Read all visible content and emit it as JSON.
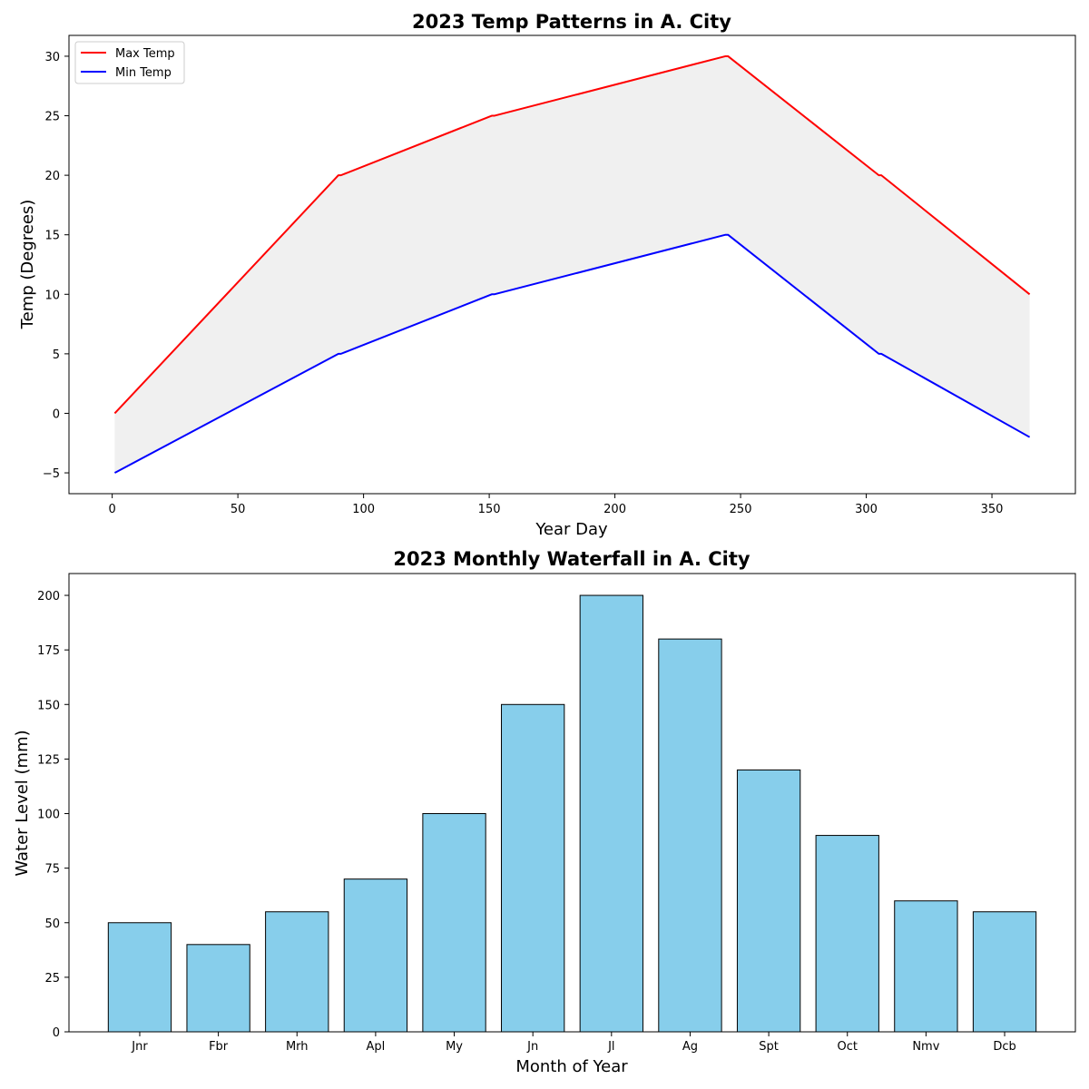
{
  "chart_data": [
    {
      "type": "line",
      "title": "2023 Temp Patterns in A. City",
      "xlabel": "Year Day",
      "ylabel": "Temp (Degrees)",
      "xlim": [
        -17.2,
        383.2
      ],
      "ylim": [
        -6.75,
        31.75
      ],
      "xticks": [
        0,
        50,
        100,
        150,
        200,
        250,
        300,
        350
      ],
      "yticks": [
        -5,
        0,
        5,
        10,
        15,
        20,
        25,
        30
      ],
      "fill_between": {
        "color": "#f0f0f0"
      },
      "legend": {
        "position": "upper-left"
      },
      "series": [
        {
          "name": "Max Temp",
          "color": "#ff0000",
          "x": [
            1,
            90,
            91,
            151,
            152,
            244,
            245,
            305,
            306,
            365
          ],
          "y": [
            0,
            20,
            20,
            25,
            25,
            30,
            30,
            20,
            20,
            10
          ]
        },
        {
          "name": "Min Temp",
          "color": "#0000ff",
          "x": [
            1,
            90,
            91,
            151,
            152,
            244,
            245,
            305,
            306,
            365
          ],
          "y": [
            -5,
            5,
            5,
            10,
            10,
            15,
            15,
            5,
            5,
            -2
          ]
        }
      ],
      "grid": false
    },
    {
      "type": "bar",
      "title": "2023 Monthly Waterfall in A. City",
      "xlabel": "Month of Year",
      "ylabel": "Water Level (mm)",
      "categories": [
        "Jnr",
        "Fbr",
        "Mrh",
        "Apl",
        "My",
        "Jn",
        "Jl",
        "Ag",
        "Spt",
        "Oct",
        "Nmv",
        "Dcb"
      ],
      "values": [
        50,
        40,
        55,
        70,
        100,
        150,
        200,
        180,
        120,
        90,
        60,
        55
      ],
      "ylim": [
        0,
        210
      ],
      "yticks": [
        0,
        25,
        50,
        75,
        100,
        125,
        150,
        175,
        200
      ],
      "bar_color": "#87ceeb",
      "edge_color": "#000000",
      "grid": false
    }
  ]
}
